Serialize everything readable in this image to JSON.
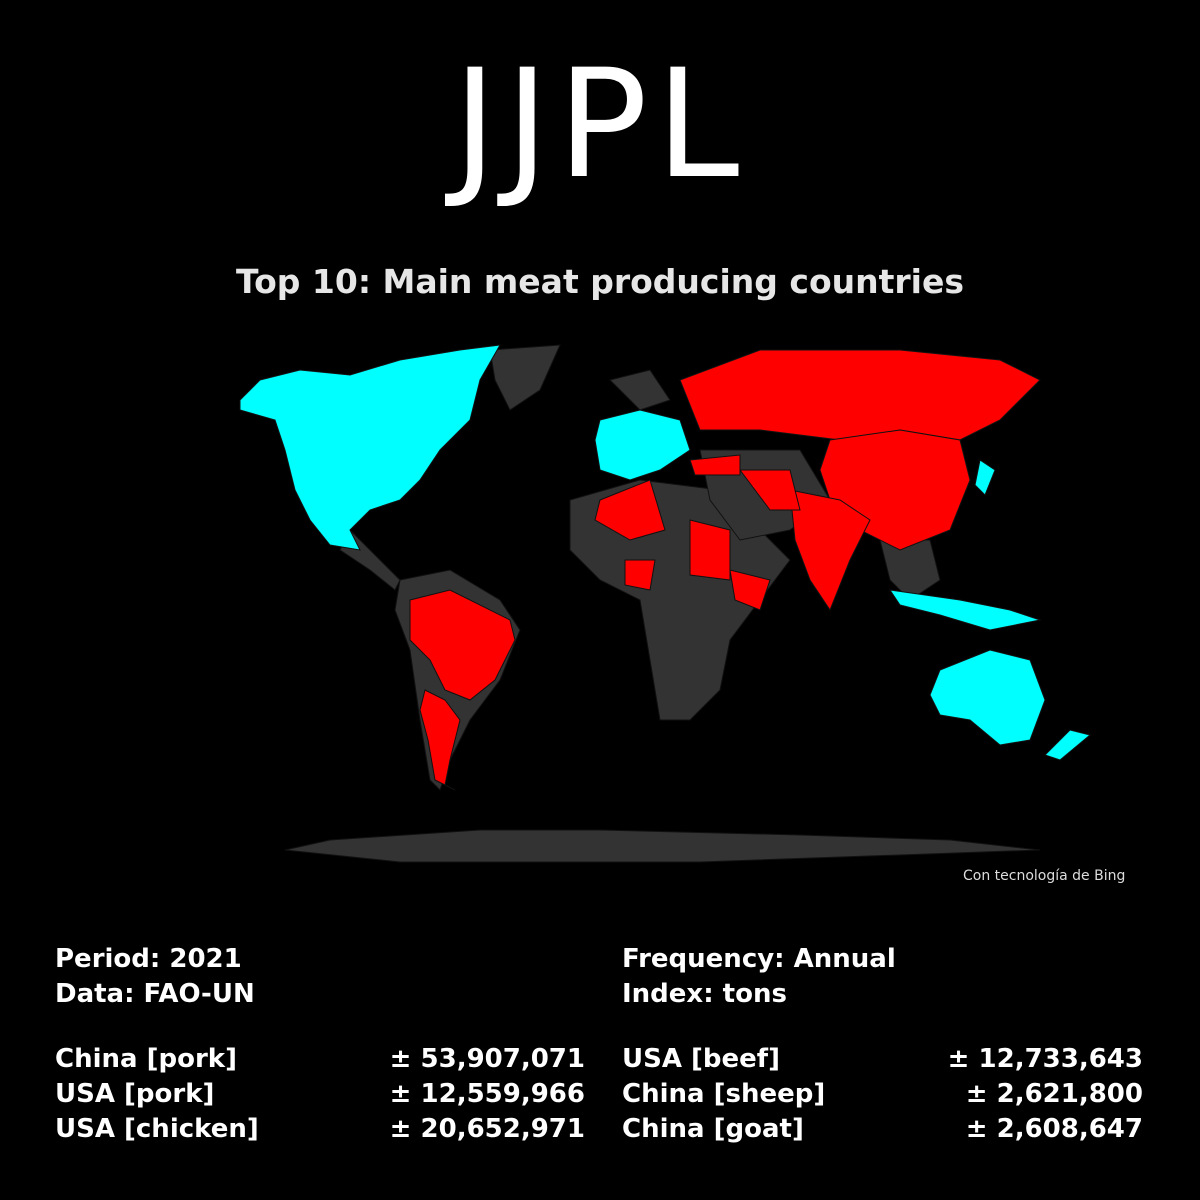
{
  "header": {
    "title": "JJPL",
    "subtitle": "Top 10: Main meat producing countries"
  },
  "map": {
    "credit": "Con tecnología de Bing"
  },
  "info": {
    "period": "Period: 2021",
    "data": "Data: FAO-UN",
    "frequency": "Frequency: Annual",
    "index": "Index: tons"
  },
  "table": {
    "rows": [
      [
        "China [pork]",
        "± 53,907,071",
        "USA [beef]",
        "± 12,733,643"
      ],
      [
        "USA [pork]",
        "± 12,559,966",
        "China [sheep]",
        "± 2,621,800"
      ],
      [
        "USA [chicken]",
        "± 20,652,971",
        "China [goat]",
        "± 2,608,647"
      ]
    ]
  }
}
